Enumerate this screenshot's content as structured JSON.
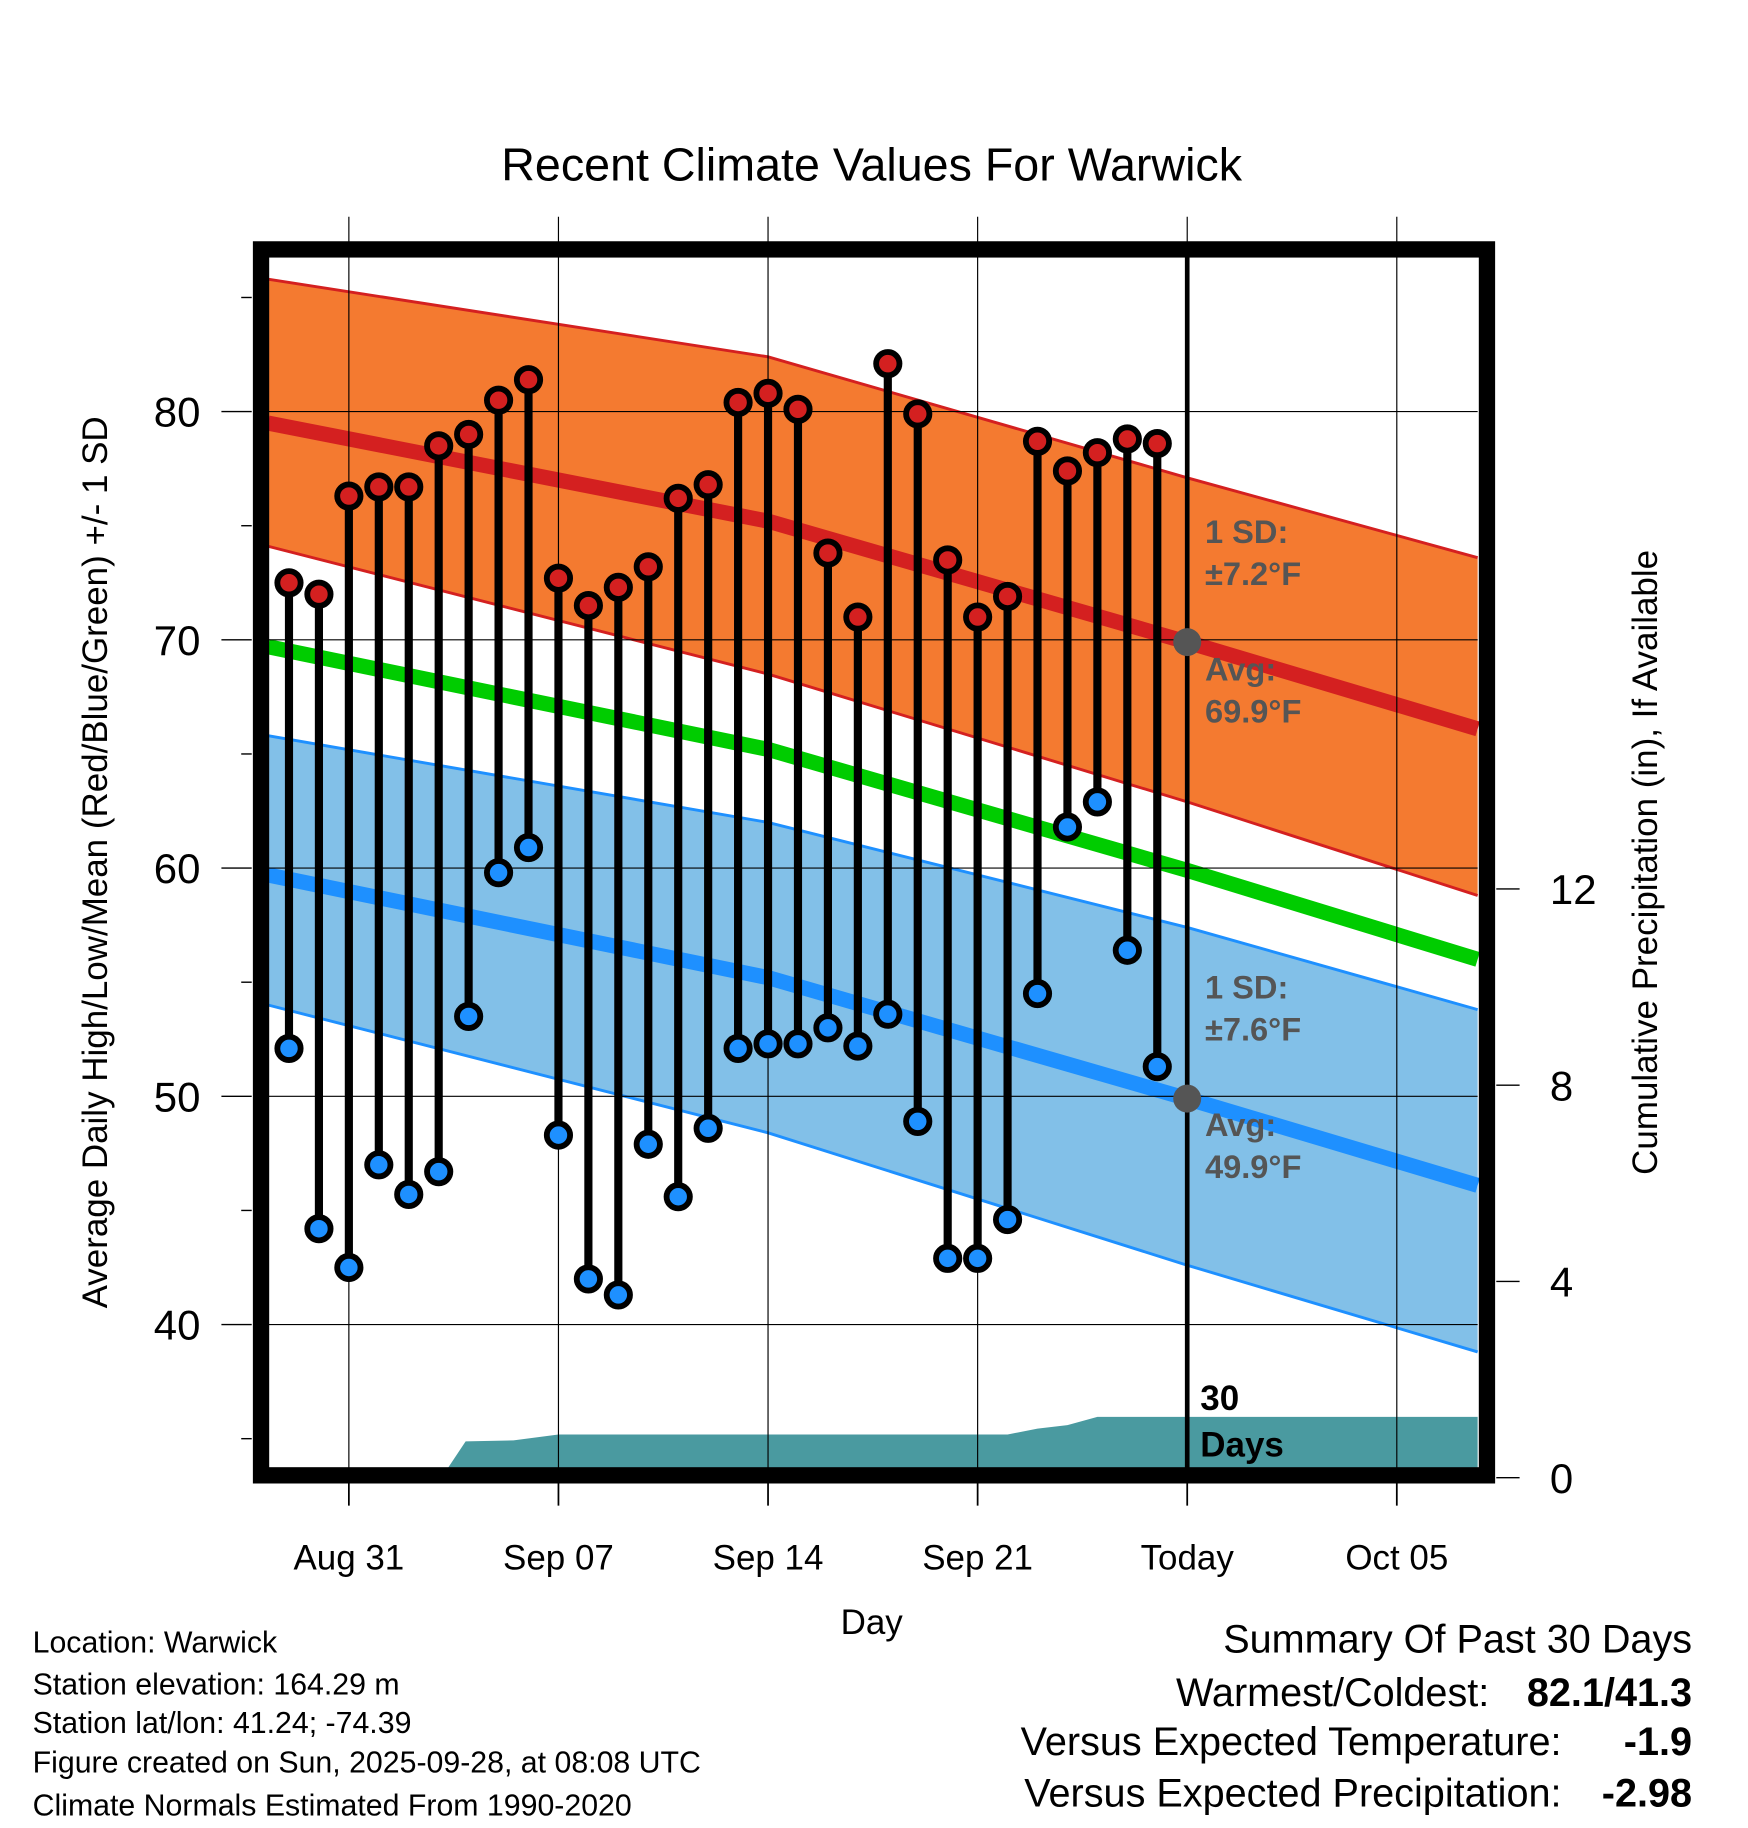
{
  "chart_data": {
    "type": "line",
    "title": "Recent Climate Values For Warwick",
    "xlabel": "Day",
    "ylabel": "Average Daily High/Low/Mean (Red/Blue/Green) +/- 1 SD",
    "y2label": "Cumulative Precipitation (in), If Available",
    "ylim": [
      33.7,
      86.8
    ],
    "y2lim": [
      0,
      16
    ],
    "yticks": [
      40,
      50,
      60,
      70,
      80
    ],
    "y2ticks": [
      0,
      4,
      8,
      12
    ],
    "xticks": [
      {
        "day": 0,
        "label": "Aug 31"
      },
      {
        "day": 7,
        "label": "Sep 07"
      },
      {
        "day": 14,
        "label": "Sep 14"
      },
      {
        "day": 21,
        "label": "Sep 21"
      },
      {
        "day": 28,
        "label": "Today"
      },
      {
        "day": 35,
        "label": "Oct 05"
      }
    ],
    "x_note": "day 0 = Aug 31",
    "xlim": [
      -2.7,
      37.7
    ],
    "grid": true,
    "days": [
      -2,
      -1,
      0,
      1,
      2,
      3,
      4,
      5,
      6,
      7,
      8,
      9,
      10,
      11,
      12,
      13,
      14,
      15,
      16,
      17,
      18,
      19,
      20,
      21,
      22,
      23,
      24,
      25,
      26,
      27
    ],
    "highs": [
      72.5,
      72.0,
      76.3,
      76.7,
      76.7,
      78.5,
      79.0,
      80.5,
      81.4,
      72.7,
      71.5,
      72.3,
      73.2,
      76.2,
      76.8,
      80.4,
      80.8,
      80.1,
      73.8,
      71.0,
      82.1,
      79.9,
      73.5,
      71.0,
      71.9,
      78.7,
      77.4,
      78.2,
      78.8,
      78.6
    ],
    "lows": [
      52.1,
      44.2,
      42.5,
      47.0,
      45.7,
      46.7,
      53.5,
      59.8,
      60.9,
      48.3,
      42.0,
      41.3,
      47.9,
      45.6,
      48.6,
      52.1,
      52.3,
      52.3,
      53.0,
      52.2,
      53.6,
      48.9,
      42.9,
      42.9,
      44.6,
      54.5,
      61.8,
      62.9,
      56.4,
      51.3
    ],
    "normals": {
      "days": [
        -2.7,
        14,
        28,
        37.7
      ],
      "high_mean": [
        79.5,
        75.2,
        69.9,
        66.1
      ],
      "high_upper": [
        85.8,
        82.4,
        77.1,
        73.6
      ],
      "high_lower": [
        74.1,
        68.5,
        62.9,
        58.8
      ],
      "mean": [
        69.7,
        65.2,
        59.9,
        56.0
      ],
      "low_mean": [
        59.7,
        55.2,
        49.9,
        46.1
      ],
      "low_upper": [
        65.8,
        62.0,
        57.4,
        53.8
      ],
      "low_lower": [
        54.0,
        48.4,
        42.6,
        38.8
      ]
    },
    "precip": {
      "days": [
        -2.7,
        3.3,
        3.9,
        5.5,
        7,
        22,
        23,
        24,
        25,
        37.7
      ],
      "values": [
        0,
        0,
        0.74,
        0.76,
        0.88,
        0.88,
        1.0,
        1.07,
        1.24,
        1.24
      ]
    },
    "annotations": {
      "high_sd_label": "1 SD:",
      "high_sd_value": "±7.2°F",
      "high_avg_label": "Avg:",
      "high_avg_value": "69.9°F",
      "low_sd_label": "1 SD:",
      "low_sd_value": "±7.6°F",
      "low_avg_label": "Avg:",
      "low_avg_value": "49.9°F",
      "today_high_avg": 69.9,
      "today_low_avg": 49.9,
      "days_label_1": "30",
      "days_label_2": "Days"
    },
    "colors": {
      "high_band": "#f47a30",
      "high_line": "#d42020",
      "mean_line": "#00cc00",
      "low_band": "#82c0e8",
      "low_line": "#1e90ff",
      "precip": "#4a9aa0",
      "ann": "#555555"
    }
  },
  "footer": {
    "location": "Location: Warwick",
    "elevation": "Station elevation: 164.29 m",
    "latlon": "Station lat/lon: 41.24; -74.39",
    "created": "Figure created on Sun, 2025-09-28, at 08:08 UTC",
    "normals": "Climate Normals Estimated From 1990-2020"
  },
  "summary": {
    "title": "Summary Of Past 30 Days",
    "warm_cold_label": "Warmest/Coldest:",
    "warm_cold_value": "82.1/41.3",
    "temp_label": "Versus Expected Temperature:",
    "temp_value": "-1.9",
    "precip_label": "Versus Expected Precipitation:",
    "precip_value": "-2.98",
    "temp_color": "#1e90ff",
    "precip_color": "#a0522d"
  }
}
